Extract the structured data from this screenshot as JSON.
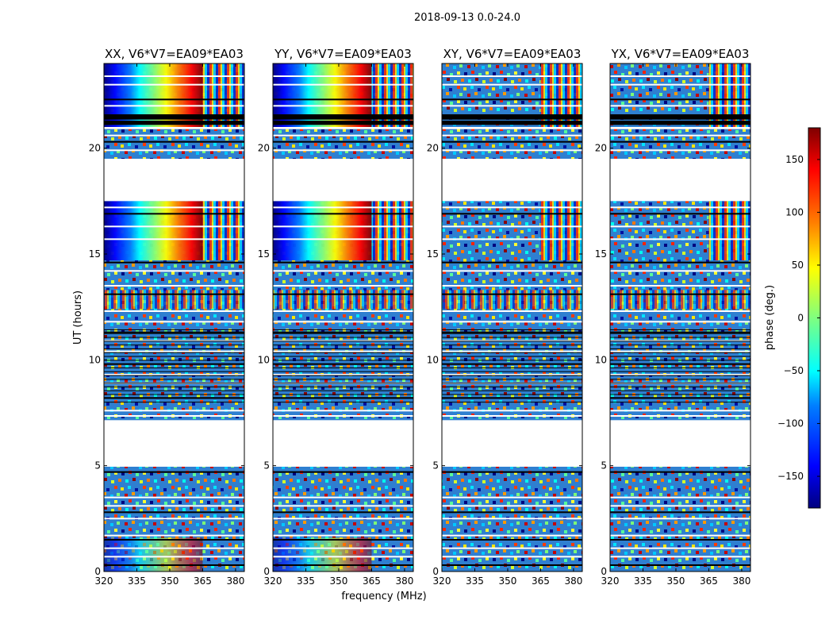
{
  "chart_data": {
    "type": "heatmap",
    "suptitle": "2018-09-13 0.0-24.0",
    "xlabel": "frequency (MHz)",
    "ylabel": "UT (hours)",
    "xlim": [
      320,
      384
    ],
    "ylim": [
      0,
      24
    ],
    "xticks": [
      320,
      335,
      350,
      365,
      380
    ],
    "yticks": [
      0,
      5,
      10,
      15,
      20
    ],
    "colorbar": {
      "label": "phase (deg.)",
      "range": [
        -180,
        180
      ],
      "ticks": [
        150,
        100,
        50,
        0,
        -50,
        -100,
        -150
      ],
      "colormap": "jet",
      "colors": [
        "#00007f",
        "#0000ff",
        "#007fff",
        "#00ffff",
        "#7fff7f",
        "#ffff00",
        "#ff7f00",
        "#ff0000",
        "#7f0000"
      ]
    },
    "panels": [
      {
        "title": "XX, V6*V7=EA09*EA03",
        "coherent": true
      },
      {
        "title": "YY, V6*V7=EA09*EA03",
        "coherent": true
      },
      {
        "title": "XY, V6*V7=EA09*EA03",
        "coherent": false
      },
      {
        "title": "YX, V6*V7=EA09*EA03",
        "coherent": false
      }
    ],
    "gaps_ut": [
      [
        4.95,
        7.15
      ],
      [
        17.5,
        19.5
      ],
      [
        20.9,
        21.0
      ]
    ],
    "flag_lines_ut": [
      0.3,
      0.7,
      1.1,
      1.5,
      1.7,
      2.5,
      2.8,
      3.1,
      3.5,
      4.7,
      7.35,
      7.6,
      8.2,
      8.9,
      9.3,
      9.8,
      10.4,
      10.9,
      11.3,
      11.8,
      12.3,
      13.1,
      13.5,
      14.2,
      14.6,
      15.7,
      16.3,
      16.9,
      17.2,
      19.9,
      20.3,
      20.6,
      22.0,
      22.3,
      23.0,
      23.4
    ]
  }
}
